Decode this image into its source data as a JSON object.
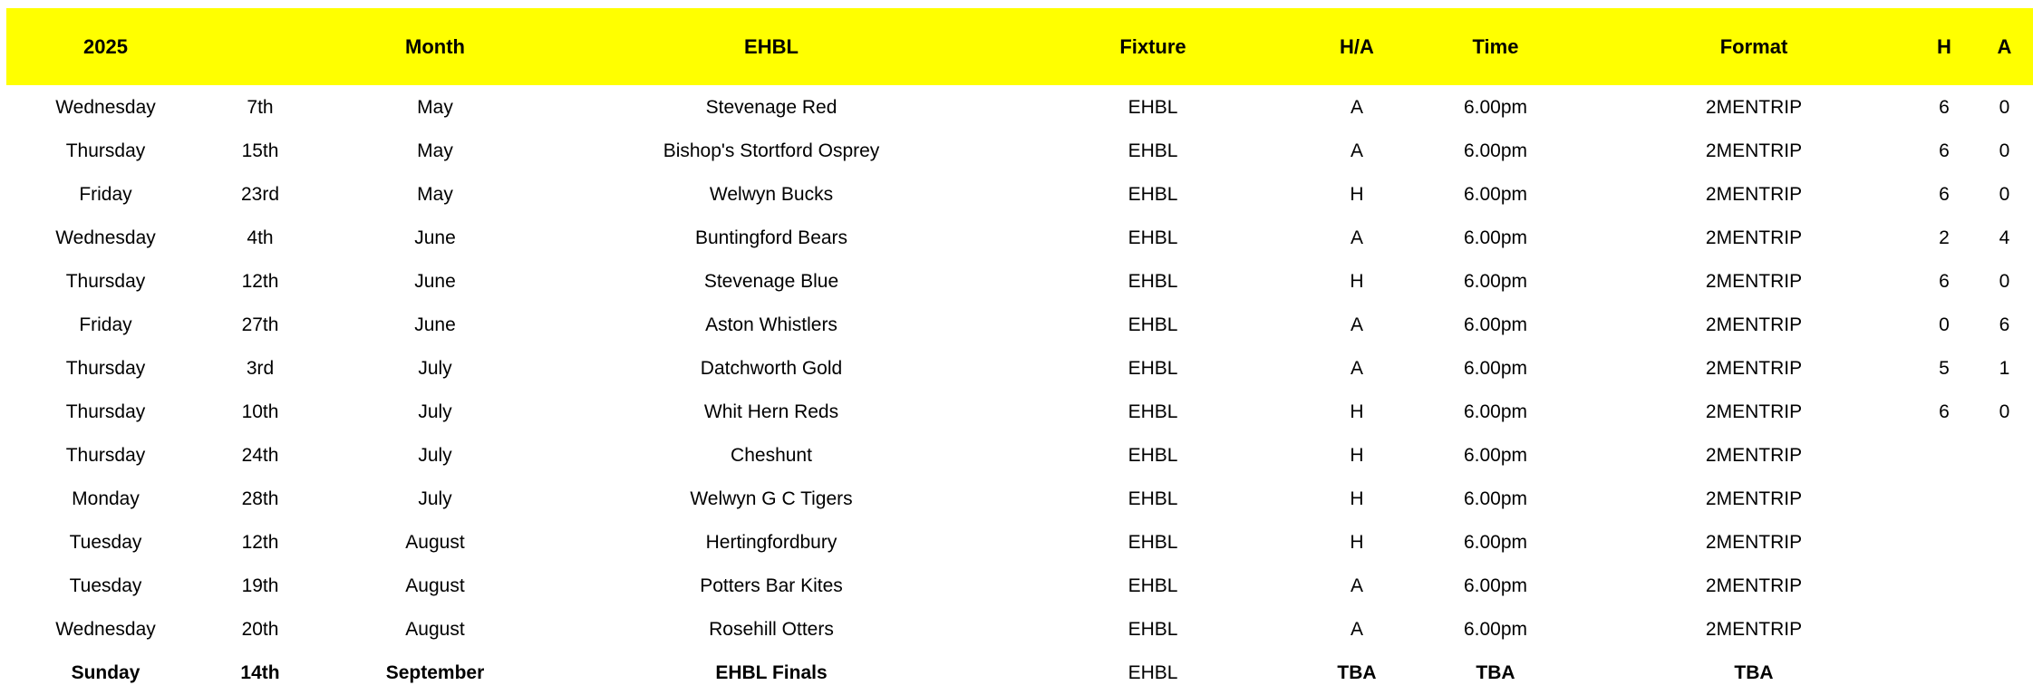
{
  "colors": {
    "header_bg": "#FFFF00",
    "text": "#000000",
    "page_bg": "#FFFFFF"
  },
  "table": {
    "header": {
      "year": "2025",
      "date": "",
      "month": "Month",
      "team": "EHBL",
      "fixture": "Fixture",
      "ha": "H/A",
      "time": "Time",
      "format": "Format",
      "h": "H",
      "a": "A"
    },
    "rows": [
      {
        "day": "Wednesday",
        "date": "7th",
        "month": "May",
        "team": "Stevenage Red",
        "fixture": "EHBL",
        "ha": "A",
        "time": "6.00pm",
        "format": "2MENTRIP",
        "h": "6",
        "a": "0",
        "bold": false
      },
      {
        "day": "Thursday",
        "date": "15th",
        "month": "May",
        "team": "Bishop's Stortford Osprey",
        "fixture": "EHBL",
        "ha": "A",
        "time": "6.00pm",
        "format": "2MENTRIP",
        "h": "6",
        "a": "0",
        "bold": false
      },
      {
        "day": "Friday",
        "date": "23rd",
        "month": "May",
        "team": "Welwyn Bucks",
        "fixture": "EHBL",
        "ha": "H",
        "time": "6.00pm",
        "format": "2MENTRIP",
        "h": "6",
        "a": "0",
        "bold": false
      },
      {
        "day": "Wednesday",
        "date": "4th",
        "month": "June",
        "team": "Buntingford Bears",
        "fixture": "EHBL",
        "ha": "A",
        "time": "6.00pm",
        "format": "2MENTRIP",
        "h": "2",
        "a": "4",
        "bold": false
      },
      {
        "day": "Thursday",
        "date": "12th",
        "month": "June",
        "team": "Stevenage Blue",
        "fixture": "EHBL",
        "ha": "H",
        "time": "6.00pm",
        "format": "2MENTRIP",
        "h": "6",
        "a": "0",
        "bold": false
      },
      {
        "day": "Friday",
        "date": "27th",
        "month": "June",
        "team": "Aston Whistlers",
        "fixture": "EHBL",
        "ha": "A",
        "time": "6.00pm",
        "format": "2MENTRIP",
        "h": "0",
        "a": "6",
        "bold": false
      },
      {
        "day": "Thursday",
        "date": "3rd",
        "month": "July",
        "team": "Datchworth Gold",
        "fixture": "EHBL",
        "ha": "A",
        "time": "6.00pm",
        "format": "2MENTRIP",
        "h": "5",
        "a": "1",
        "bold": false
      },
      {
        "day": "Thursday",
        "date": "10th",
        "month": "July",
        "team": "Whit Hern Reds",
        "fixture": "EHBL",
        "ha": "H",
        "time": "6.00pm",
        "format": "2MENTRIP",
        "h": "6",
        "a": "0",
        "bold": false
      },
      {
        "day": "Thursday",
        "date": "24th",
        "month": "July",
        "team": "Cheshunt",
        "fixture": "EHBL",
        "ha": "H",
        "time": "6.00pm",
        "format": "2MENTRIP",
        "h": "",
        "a": "",
        "bold": false
      },
      {
        "day": "Monday",
        "date": "28th",
        "month": "July",
        "team": "Welwyn G C Tigers",
        "fixture": "EHBL",
        "ha": "H",
        "time": "6.00pm",
        "format": "2MENTRIP",
        "h": "",
        "a": "",
        "bold": false
      },
      {
        "day": "Tuesday",
        "date": "12th",
        "month": "August",
        "team": "Hertingfordbury",
        "fixture": "EHBL",
        "ha": "H",
        "time": "6.00pm",
        "format": "2MENTRIP",
        "h": "",
        "a": "",
        "bold": false
      },
      {
        "day": "Tuesday",
        "date": "19th",
        "month": "August",
        "team": "Potters Bar Kites",
        "fixture": "EHBL",
        "ha": "A",
        "time": "6.00pm",
        "format": "2MENTRIP",
        "h": "",
        "a": "",
        "bold": false
      },
      {
        "day": "Wednesday",
        "date": "20th",
        "month": "August",
        "team": "Rosehill Otters",
        "fixture": "EHBL",
        "ha": "A",
        "time": "6.00pm",
        "format": "2MENTRIP",
        "h": "",
        "a": "",
        "bold": false
      },
      {
        "day": "Sunday",
        "date": "14th",
        "month": "September",
        "team": "EHBL Finals",
        "fixture": "EHBL",
        "ha": "TBA",
        "time": "TBA",
        "format": "TBA",
        "h": "",
        "a": "",
        "bold": true
      }
    ]
  }
}
